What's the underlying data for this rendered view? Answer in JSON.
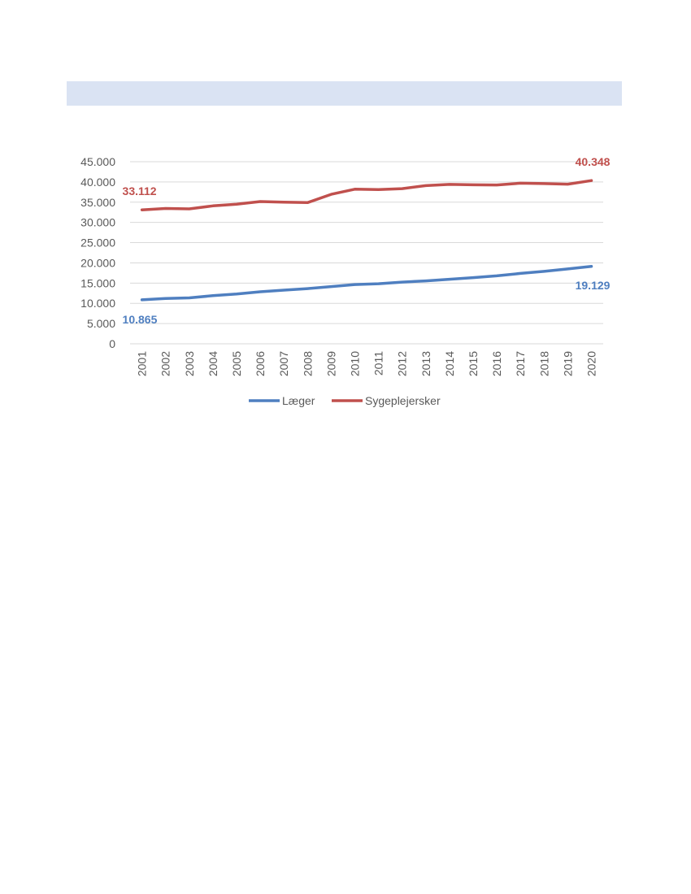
{
  "colors": {
    "header_band": "#dae3f3",
    "laeger": "#4f7fc0",
    "sygeplejersker": "#c0504d",
    "grid": "#d9d9d9",
    "tick_text": "#595959"
  },
  "chart_data": {
    "type": "line",
    "title": "",
    "xlabel": "",
    "ylabel": "",
    "grid": true,
    "legend_position": "bottom",
    "ylim": [
      0,
      45000
    ],
    "y_ticks": [
      {
        "value": 0,
        "label": "0"
      },
      {
        "value": 5000,
        "label": "5.000"
      },
      {
        "value": 10000,
        "label": "10.000"
      },
      {
        "value": 15000,
        "label": "15.000"
      },
      {
        "value": 20000,
        "label": "20.000"
      },
      {
        "value": 25000,
        "label": "25.000"
      },
      {
        "value": 30000,
        "label": "30.000"
      },
      {
        "value": 35000,
        "label": "35.000"
      },
      {
        "value": 40000,
        "label": "40.000"
      },
      {
        "value": 45000,
        "label": "45.000"
      }
    ],
    "categories": [
      "2001",
      "2002",
      "2003",
      "2004",
      "2005",
      "2006",
      "2007",
      "2008",
      "2009",
      "2010",
      "2011",
      "2012",
      "2013",
      "2014",
      "2015",
      "2016",
      "2017",
      "2018",
      "2019",
      "2020"
    ],
    "series": [
      {
        "name": "Læger",
        "color": "#4f7fc0",
        "values": [
          10865,
          11200,
          11350,
          11900,
          12300,
          12850,
          13250,
          13650,
          14150,
          14650,
          14850,
          15250,
          15550,
          15950,
          16350,
          16800,
          17400,
          17900,
          18500,
          19129
        ]
      },
      {
        "name": "Sygeplejersker",
        "color": "#c0504d",
        "values": [
          33112,
          33450,
          33350,
          34100,
          34500,
          35150,
          35000,
          34900,
          36950,
          38200,
          38100,
          38350,
          39100,
          39400,
          39300,
          39250,
          39700,
          39600,
          39450,
          40348
        ]
      }
    ],
    "annotations": [
      {
        "series": "Sygeplejersker",
        "category": "2001",
        "text": "33.112",
        "color": "#c0504d"
      },
      {
        "series": "Sygeplejersker",
        "category": "2020",
        "text": "40.348",
        "color": "#c0504d"
      },
      {
        "series": "Læger",
        "category": "2001",
        "text": "10.865",
        "color": "#4f7fc0"
      },
      {
        "series": "Læger",
        "category": "2020",
        "text": "19.129",
        "color": "#4f7fc0"
      }
    ]
  }
}
